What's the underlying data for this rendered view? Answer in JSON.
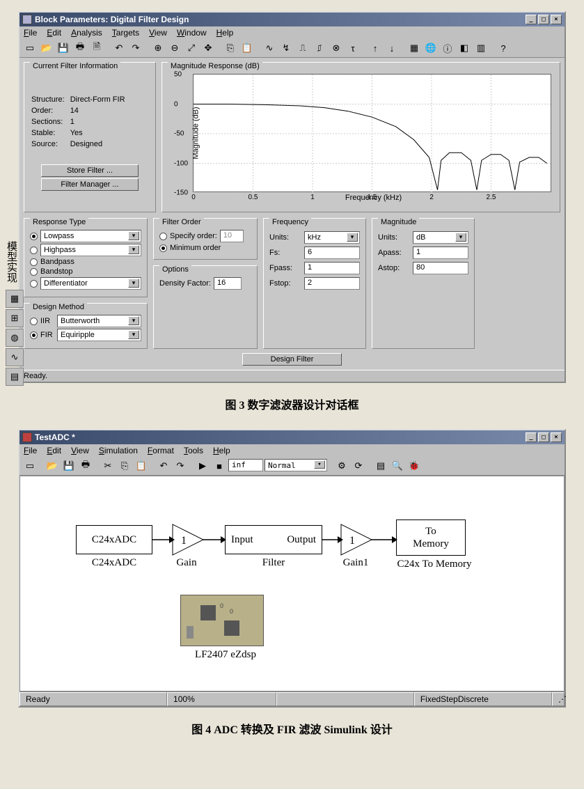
{
  "fig3": {
    "caption": "图 3  数字滤波器设计对话框",
    "side_label": "模型实现",
    "window": {
      "title": "Block Parameters: Digital Filter Design",
      "menus": [
        "File",
        "Edit",
        "Analysis",
        "Targets",
        "View",
        "Window",
        "Help"
      ],
      "toolbar_icons": [
        "new-icon",
        "open-icon",
        "save-icon",
        "print-icon",
        "print-preview-icon",
        "sep",
        "undo-icon",
        "redo-icon",
        "sep",
        "zoom-in-icon",
        "zoom-out-icon",
        "zoom-fit-icon",
        "zoom-xy-icon",
        "sep",
        "copy-icon",
        "paste-icon",
        "sep",
        "mag-resp-icon",
        "phase-resp-icon",
        "impulse-icon",
        "step-icon",
        "pz-icon",
        "grpdelay-icon",
        "sep",
        "up-icon",
        "down-icon",
        "sep",
        "fvtool-icon",
        "world-icon",
        "info-icon",
        "toggle-icon",
        "layout-icon",
        "sep",
        "help-icon"
      ],
      "status": "Ready."
    },
    "cfi": {
      "title": "Current Filter Information",
      "rows": [
        [
          "Structure:",
          "Direct-Form FIR"
        ],
        [
          "Order:",
          "14"
        ],
        [
          "Sections:",
          "1"
        ],
        [
          "Stable:",
          "Yes"
        ],
        [
          "Source:",
          "Designed"
        ]
      ],
      "store_btn": "Store Filter ...",
      "mgr_btn": "Filter Manager ..."
    },
    "chart": {
      "title": "Magnitude Response (dB)",
      "ylabel": "Magnitude (dB)",
      "xlabel": "Frequency (kHz)",
      "ylim": [
        -150,
        50
      ],
      "xlim": [
        0,
        3
      ],
      "yticks": [
        50,
        0,
        -50,
        -100,
        -150
      ],
      "xticks": [
        0,
        0.5,
        1,
        1.5,
        2,
        2.5
      ],
      "curve_color": "#000000",
      "bg": "#ffffff",
      "grid_color": "#cccccc",
      "curve": [
        [
          0.0,
          0
        ],
        [
          0.3,
          0
        ],
        [
          0.6,
          -1
        ],
        [
          0.9,
          -3
        ],
        [
          1.1,
          -6
        ],
        [
          1.3,
          -12
        ],
        [
          1.5,
          -22
        ],
        [
          1.7,
          -38
        ],
        [
          1.85,
          -60
        ],
        [
          1.98,
          -90
        ],
        [
          2.05,
          -145
        ],
        [
          2.08,
          -95
        ],
        [
          2.15,
          -82
        ],
        [
          2.25,
          -82
        ],
        [
          2.33,
          -95
        ],
        [
          2.38,
          -145
        ],
        [
          2.42,
          -95
        ],
        [
          2.5,
          -85
        ],
        [
          2.58,
          -85
        ],
        [
          2.65,
          -95
        ],
        [
          2.7,
          -145
        ],
        [
          2.74,
          -98
        ],
        [
          2.82,
          -90
        ],
        [
          2.9,
          -90
        ],
        [
          2.97,
          -100
        ]
      ]
    },
    "response_type": {
      "title": "Response Type",
      "items": [
        {
          "label": "Lowpass",
          "type": "combo",
          "selected": true
        },
        {
          "label": "Highpass",
          "type": "combo",
          "selected": false
        },
        {
          "label": "Bandpass",
          "type": "radio",
          "selected": false
        },
        {
          "label": "Bandstop",
          "type": "radio",
          "selected": false
        },
        {
          "label": "Differentiator",
          "type": "combo",
          "selected": false
        }
      ]
    },
    "design_method": {
      "title": "Design Method",
      "iir": {
        "label": "IIR",
        "combo": "Butterworth",
        "selected": false
      },
      "fir": {
        "label": "FIR",
        "combo": "Equiripple",
        "selected": true
      }
    },
    "filter_order": {
      "title": "Filter Order",
      "specify": {
        "label": "Specify order:",
        "value": "10",
        "selected": false
      },
      "minimum": {
        "label": "Minimum order",
        "selected": true
      }
    },
    "options": {
      "title": "Options",
      "density": {
        "label": "Density Factor:",
        "value": "16"
      }
    },
    "frequency": {
      "title": "Frequency",
      "units_label": "Units:",
      "units": "kHz",
      "fs_label": "Fs:",
      "fs": "6",
      "fpass_label": "Fpass:",
      "fpass": "1",
      "fstop_label": "Fstop:",
      "fstop": "2"
    },
    "magnitude": {
      "title": "Magnitude",
      "units_label": "Units:",
      "units": "dB",
      "apass_label": "Apass:",
      "apass": "1",
      "astop_label": "Astop:",
      "astop": "80"
    },
    "design_btn": "Design Filter"
  },
  "fig4": {
    "caption": "图 4  ADC 转换及 FIR 滤波 Simulink 设计",
    "window": {
      "title": "TestADC *",
      "menus": [
        "File",
        "Edit",
        "View",
        "Simulation",
        "Format",
        "Tools",
        "Help"
      ],
      "toolbar_icons": [
        "new-icon",
        "sep",
        "open-icon",
        "save-icon",
        "print-icon",
        "sep",
        "cut-icon",
        "copy-icon",
        "paste-icon",
        "sep",
        "undo-icon",
        "redo-icon",
        "sep",
        "play-icon",
        "stop-icon"
      ],
      "stoptime": "inf",
      "mode": "Normal",
      "tail_icons": [
        "build-icon",
        "update-icon",
        "sep",
        "lib-icon",
        "explorer-icon",
        "debug-icon"
      ]
    },
    "blocks": {
      "adc": {
        "text": "C24xADC",
        "label": "C24xADC"
      },
      "gain": {
        "text": "1",
        "label": "Gain"
      },
      "filter": {
        "text_in": "Input",
        "text_out": "Output",
        "label": "Filter"
      },
      "gain1": {
        "text": "1",
        "label": "Gain1"
      },
      "mem": {
        "text": "To\nMemory",
        "label": "C24x To Memory"
      },
      "board": {
        "label": "LF2407 eZdsp"
      }
    },
    "status": {
      "ready": "Ready",
      "zoom": "100%",
      "solver": "FixedStepDiscrete"
    }
  }
}
